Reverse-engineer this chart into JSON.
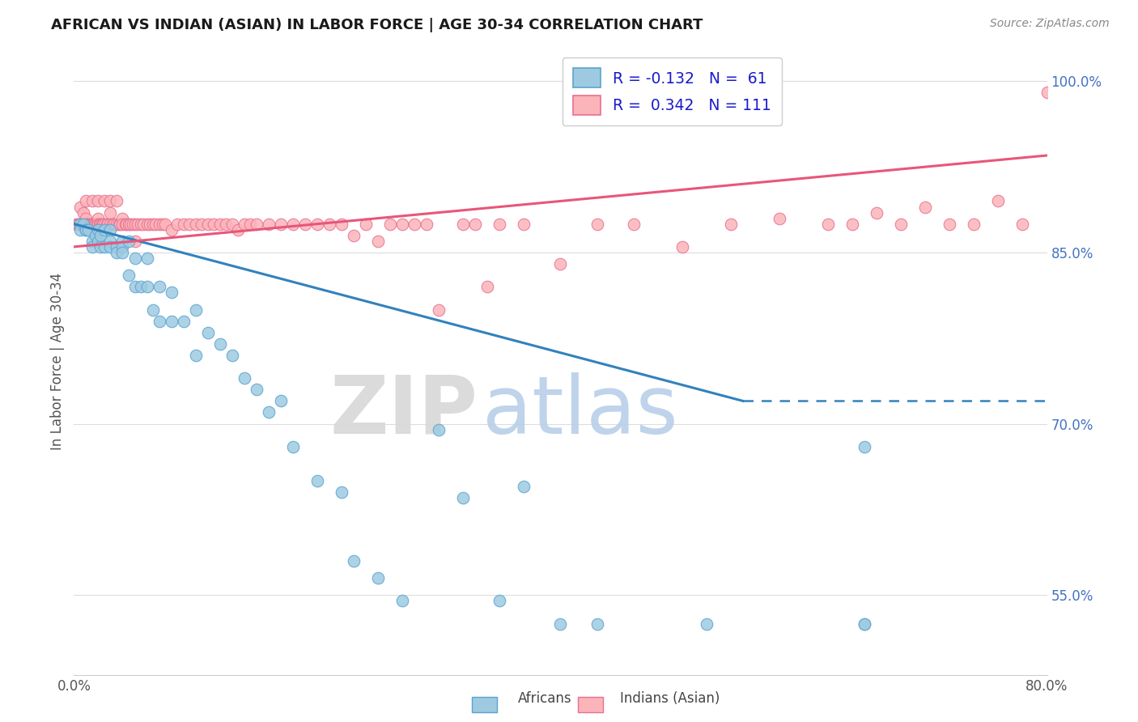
{
  "title": "AFRICAN VS INDIAN (ASIAN) IN LABOR FORCE | AGE 30-34 CORRELATION CHART",
  "source_text": "Source: ZipAtlas.com",
  "ylabel": "In Labor Force | Age 30-34",
  "xlim": [
    0.0,
    0.8
  ],
  "ylim": [
    0.48,
    1.03
  ],
  "xticks": [
    0.0,
    0.1,
    0.2,
    0.3,
    0.4,
    0.5,
    0.6,
    0.7,
    0.8
  ],
  "xtick_labels": [
    "0.0%",
    "",
    "",
    "",
    "",
    "",
    "",
    "",
    "80.0%"
  ],
  "ytick_labels": [
    "55.0%",
    "70.0%",
    "85.0%",
    "100.0%"
  ],
  "yticks": [
    0.55,
    0.7,
    0.85,
    1.0
  ],
  "africans_R": -0.132,
  "africans_N": 61,
  "indians_R": 0.342,
  "indians_N": 111,
  "scatter_color_african": "#9ecae1",
  "scatter_color_indian": "#fbb4b9",
  "line_color_african": "#3182bd",
  "line_color_indian": "#e8567a",
  "africans_x": [
    0.005,
    0.005,
    0.008,
    0.01,
    0.01,
    0.012,
    0.015,
    0.015,
    0.018,
    0.02,
    0.02,
    0.022,
    0.022,
    0.025,
    0.025,
    0.03,
    0.03,
    0.03,
    0.035,
    0.035,
    0.04,
    0.04,
    0.04,
    0.045,
    0.045,
    0.05,
    0.05,
    0.055,
    0.06,
    0.06,
    0.065,
    0.07,
    0.07,
    0.08,
    0.08,
    0.09,
    0.1,
    0.1,
    0.11,
    0.12,
    0.13,
    0.14,
    0.15,
    0.16,
    0.17,
    0.18,
    0.2,
    0.22,
    0.23,
    0.25,
    0.27,
    0.3,
    0.32,
    0.35,
    0.37,
    0.4,
    0.43,
    0.52,
    0.65,
    0.65,
    0.65
  ],
  "africans_y": [
    0.875,
    0.87,
    0.875,
    0.87,
    0.87,
    0.87,
    0.86,
    0.855,
    0.865,
    0.87,
    0.86,
    0.865,
    0.855,
    0.87,
    0.855,
    0.87,
    0.86,
    0.855,
    0.855,
    0.85,
    0.86,
    0.855,
    0.85,
    0.86,
    0.83,
    0.845,
    0.82,
    0.82,
    0.845,
    0.82,
    0.8,
    0.82,
    0.79,
    0.815,
    0.79,
    0.79,
    0.8,
    0.76,
    0.78,
    0.77,
    0.76,
    0.74,
    0.73,
    0.71,
    0.72,
    0.68,
    0.65,
    0.64,
    0.58,
    0.565,
    0.545,
    0.695,
    0.635,
    0.545,
    0.645,
    0.525,
    0.525,
    0.525,
    0.525,
    0.68,
    0.525
  ],
  "indians_x": [
    0.002,
    0.003,
    0.004,
    0.005,
    0.005,
    0.007,
    0.008,
    0.009,
    0.01,
    0.01,
    0.01,
    0.012,
    0.012,
    0.013,
    0.014,
    0.015,
    0.015,
    0.016,
    0.017,
    0.018,
    0.019,
    0.02,
    0.02,
    0.02,
    0.021,
    0.022,
    0.023,
    0.024,
    0.025,
    0.025,
    0.027,
    0.028,
    0.03,
    0.03,
    0.03,
    0.032,
    0.033,
    0.035,
    0.035,
    0.037,
    0.038,
    0.04,
    0.04,
    0.042,
    0.043,
    0.045,
    0.046,
    0.048,
    0.05,
    0.05,
    0.052,
    0.055,
    0.057,
    0.06,
    0.062,
    0.065,
    0.067,
    0.07,
    0.073,
    0.075,
    0.08,
    0.085,
    0.09,
    0.095,
    0.1,
    0.105,
    0.11,
    0.115,
    0.12,
    0.125,
    0.13,
    0.135,
    0.14,
    0.145,
    0.15,
    0.16,
    0.17,
    0.18,
    0.19,
    0.2,
    0.21,
    0.22,
    0.23,
    0.24,
    0.25,
    0.26,
    0.27,
    0.28,
    0.29,
    0.3,
    0.32,
    0.33,
    0.34,
    0.35,
    0.37,
    0.4,
    0.43,
    0.46,
    0.5,
    0.54,
    0.58,
    0.62,
    0.64,
    0.66,
    0.68,
    0.7,
    0.72,
    0.74,
    0.76,
    0.78,
    0.8
  ],
  "indians_y": [
    0.875,
    0.875,
    0.875,
    0.89,
    0.875,
    0.875,
    0.885,
    0.875,
    0.895,
    0.88,
    0.875,
    0.875,
    0.875,
    0.875,
    0.875,
    0.895,
    0.875,
    0.875,
    0.875,
    0.875,
    0.875,
    0.895,
    0.88,
    0.875,
    0.875,
    0.875,
    0.875,
    0.875,
    0.895,
    0.875,
    0.875,
    0.875,
    0.895,
    0.885,
    0.875,
    0.875,
    0.875,
    0.895,
    0.875,
    0.875,
    0.875,
    0.88,
    0.875,
    0.875,
    0.875,
    0.875,
    0.875,
    0.875,
    0.875,
    0.86,
    0.875,
    0.875,
    0.875,
    0.875,
    0.875,
    0.875,
    0.875,
    0.875,
    0.875,
    0.875,
    0.87,
    0.875,
    0.875,
    0.875,
    0.875,
    0.875,
    0.875,
    0.875,
    0.875,
    0.875,
    0.875,
    0.87,
    0.875,
    0.875,
    0.875,
    0.875,
    0.875,
    0.875,
    0.875,
    0.875,
    0.875,
    0.875,
    0.865,
    0.875,
    0.86,
    0.875,
    0.875,
    0.875,
    0.875,
    0.8,
    0.875,
    0.875,
    0.82,
    0.875,
    0.875,
    0.84,
    0.875,
    0.875,
    0.855,
    0.875,
    0.88,
    0.875,
    0.875,
    0.885,
    0.875,
    0.89,
    0.875,
    0.875,
    0.895,
    0.875,
    0.99
  ],
  "african_line_x0": 0.0,
  "african_line_y0": 0.875,
  "african_line_x1": 0.55,
  "african_line_y1": 0.72,
  "african_line_dash_x1": 0.8,
  "african_line_dash_y1": 0.72,
  "indian_line_x0": 0.0,
  "indian_line_y0": 0.855,
  "indian_line_x1": 0.8,
  "indian_line_y1": 0.935
}
